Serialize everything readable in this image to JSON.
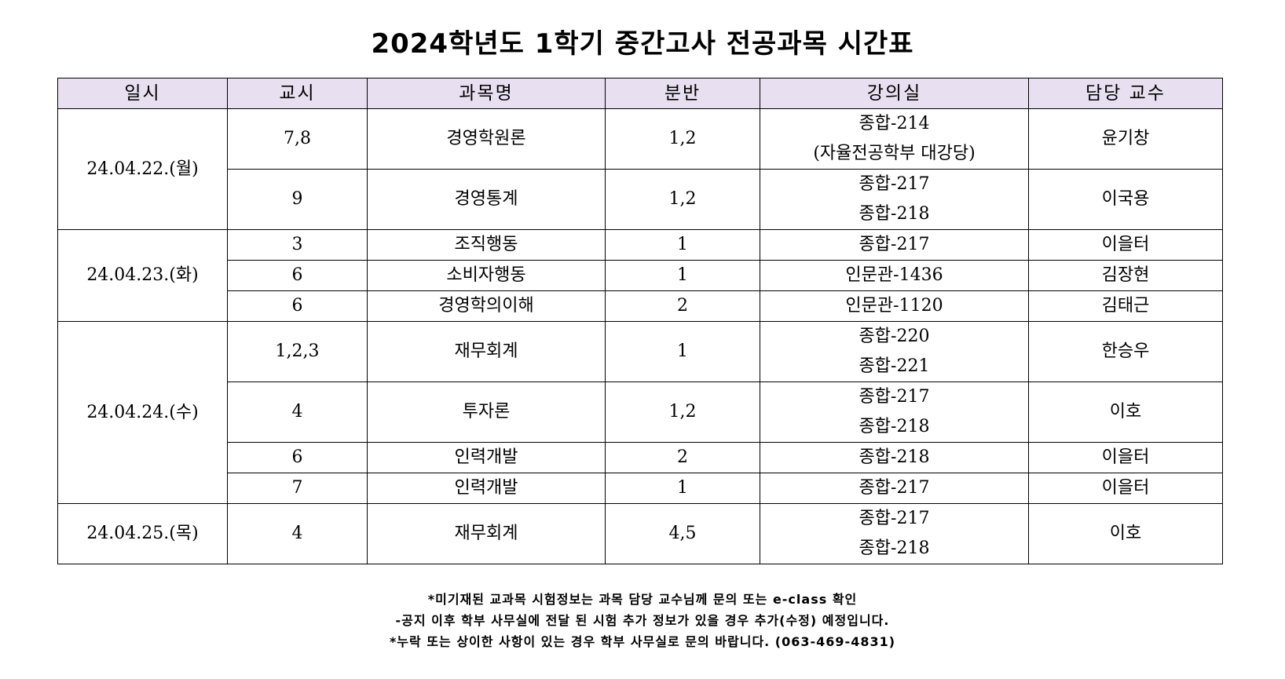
{
  "title": "2024학년도 1학기 중간고사 전공과목 시간표",
  "headers": [
    "일시",
    "교시",
    "과목명",
    "분반",
    "강의실",
    "담당 교수"
  ],
  "days": [
    {
      "date": "24.04.22.(월)",
      "rows": [
        {
          "period": "7,8",
          "course": "경영학원론",
          "section": "1,2",
          "rooms": [
            "종합-214",
            "(자율전공학부 대강당)"
          ],
          "professor": "윤기창"
        },
        {
          "period": "9",
          "course": "경영통계",
          "section": "1,2",
          "rooms": [
            "종합-217",
            "종합-218"
          ],
          "professor": "이국용"
        }
      ]
    },
    {
      "date": "24.04.23.(화)",
      "rows": [
        {
          "period": "3",
          "course": "조직행동",
          "section": "1",
          "rooms": [
            "종합-217"
          ],
          "professor": "이을터"
        },
        {
          "period": "6",
          "course": "소비자행동",
          "section": "1",
          "rooms": [
            "인문관-1436"
          ],
          "professor": "김장현"
        },
        {
          "period": "6",
          "course": "경영학의이해",
          "section": "2",
          "rooms": [
            "인문관-1120"
          ],
          "professor": "김태근"
        }
      ]
    },
    {
      "date": "24.04.24.(수)",
      "rows": [
        {
          "period": "1,2,3",
          "course": "재무회계",
          "section": "1",
          "rooms": [
            "종합-220",
            "종합-221"
          ],
          "professor": "한승우"
        },
        {
          "period": "4",
          "course": "투자론",
          "section": "1,2",
          "rooms": [
            "종합-217",
            "종합-218"
          ],
          "professor": "이호"
        },
        {
          "period": "6",
          "course": "인력개발",
          "section": "2",
          "rooms": [
            "종합-218"
          ],
          "professor": "이을터"
        },
        {
          "period": "7",
          "course": "인력개발",
          "section": "1",
          "rooms": [
            "종합-217"
          ],
          "professor": "이을터"
        }
      ]
    },
    {
      "date": "24.04.25.(목)",
      "rows": [
        {
          "period": "4",
          "course": "재무회계",
          "section": "4,5",
          "rooms": [
            "종합-217",
            "종합-218"
          ],
          "professor": "이호"
        }
      ]
    }
  ],
  "notes": [
    "*미기재된 교과목 시험정보는 과목 담당 교수님께 문의 또는 e-class 확인",
    "-공지 이후 학부 사무실에 전달 된 시험 추가 정보가 있을 경우 추가(수정) 예정입니다.",
    "*누락 또는 상이한 사항이 있는 경우 학부 사무실로 문의 바랍니다. (063-469-4831)"
  ]
}
